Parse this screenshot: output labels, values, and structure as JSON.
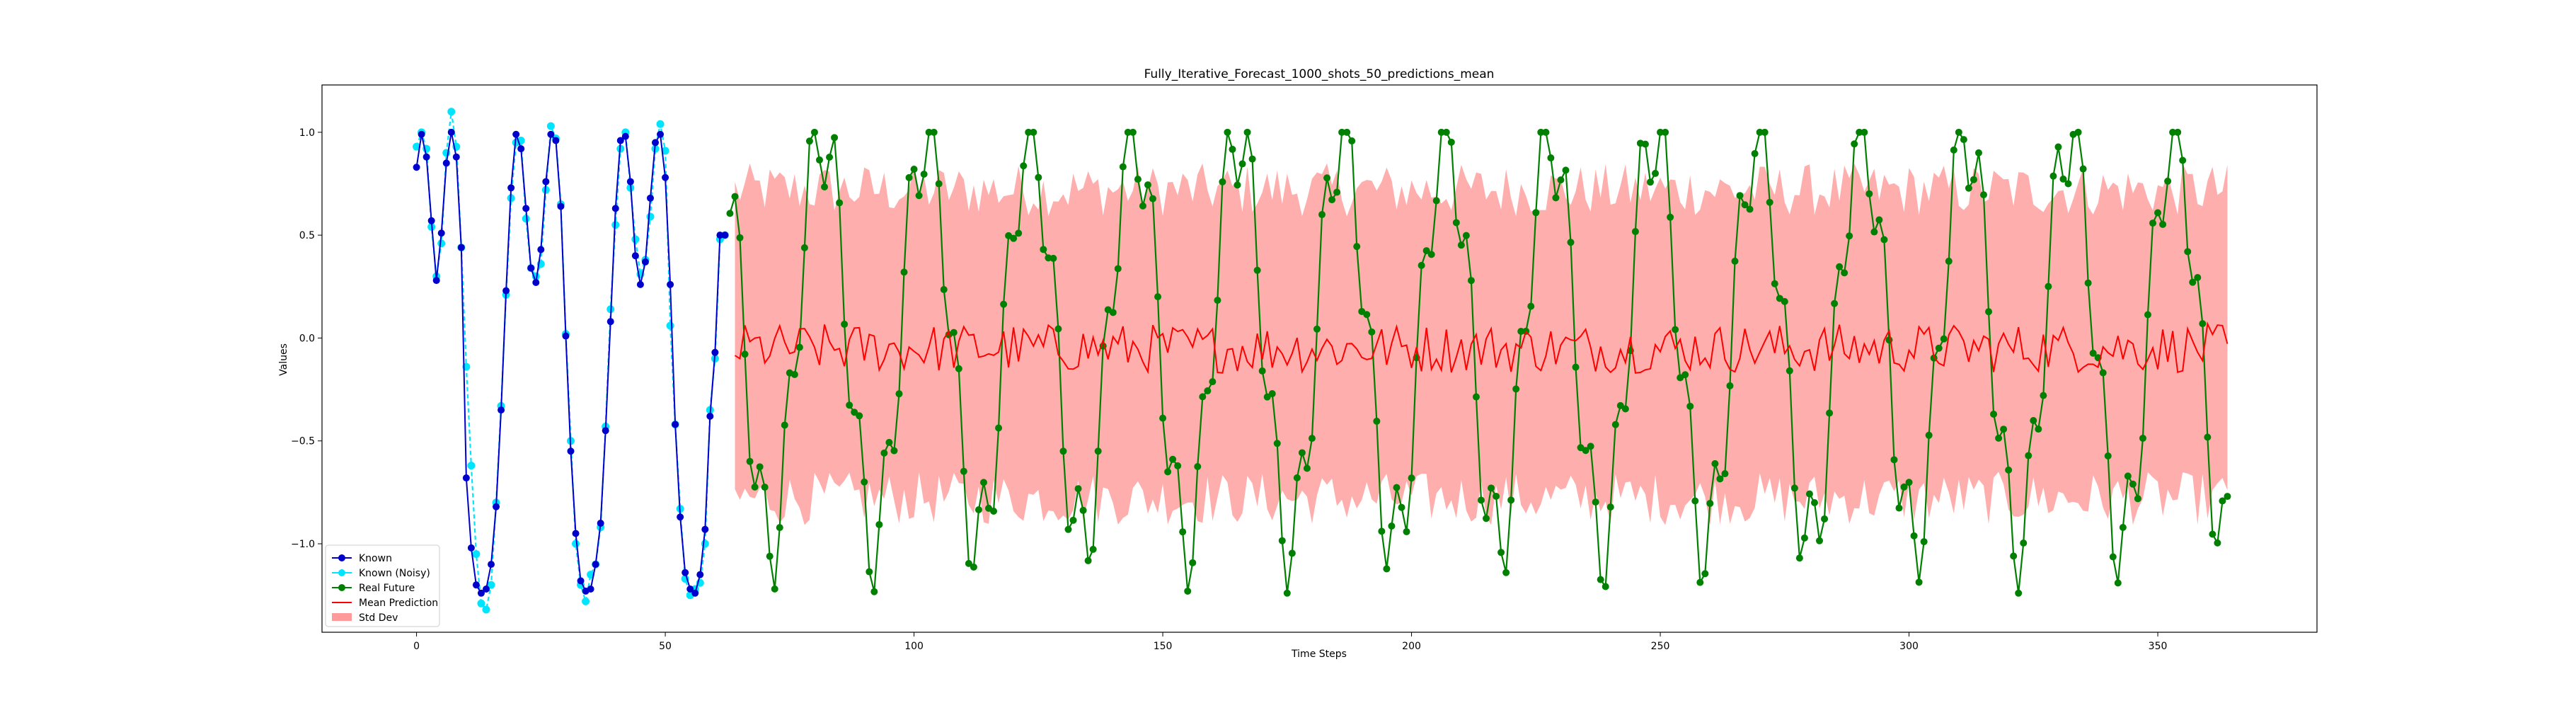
{
  "chart_data": {
    "type": "line",
    "title": "Fully_Iterative_Forecast_1000_shots_50_predictions_mean",
    "xlabel": "Time Steps",
    "ylabel": "Values",
    "xlim": [
      -19,
      382
    ],
    "ylim": [
      -1.43,
      1.23
    ],
    "x_ticks": [
      0,
      50,
      100,
      150,
      200,
      250,
      300,
      350
    ],
    "y_ticks": [
      -1.0,
      -0.5,
      0.0,
      0.5,
      1.0
    ],
    "x_tick_labels": [
      "0",
      "50",
      "100",
      "150",
      "200",
      "250",
      "300",
      "350"
    ],
    "y_tick_labels": [
      "−1.0",
      "−0.5",
      "0.0",
      "0.5",
      "1.0"
    ],
    "grid": false,
    "legend_position": "lower-left",
    "signal": {
      "description_of_values": "sum of sines",
      "freq1_period_steps": 20.9,
      "freq2_period_steps": 4.9,
      "amp1": 1.0,
      "amp2": 0.26
    },
    "series": [
      {
        "name": "Known",
        "color": "#0000cd",
        "x_range": [
          0,
          63
        ],
        "y": [
          0.83,
          0.99,
          0.88,
          0.57,
          0.28,
          0.51,
          0.85,
          1.0,
          0.88,
          0.44,
          -0.68,
          -1.02,
          -1.2,
          -1.24,
          -1.22,
          -1.1,
          -0.82,
          -0.35,
          0.23,
          0.73,
          0.99,
          0.92,
          0.63,
          0.34,
          0.27,
          0.43,
          0.76,
          0.99,
          0.96,
          0.64,
          0.01,
          -0.55,
          -0.95,
          -1.18,
          -1.23,
          -1.22,
          -1.1,
          -0.9,
          -0.45,
          0.08,
          0.63,
          0.96,
          0.98,
          0.76,
          0.4,
          0.26,
          0.37,
          0.68,
          0.95,
          0.99,
          0.78,
          0.26,
          -0.42,
          -0.87,
          -1.14,
          -1.22,
          -1.24,
          -1.15,
          -0.93,
          -0.38,
          -0.07,
          0.5,
          0.5
        ]
      },
      {
        "name": "Known (Noisy)",
        "color": "#00e5ff",
        "x_range": [
          0,
          63
        ],
        "y": [
          0.93,
          1.0,
          0.92,
          0.54,
          0.3,
          0.46,
          0.9,
          1.1,
          0.93,
          0.44,
          -0.14,
          -0.62,
          -1.05,
          -1.29,
          -1.32,
          -1.2,
          -0.8,
          -0.33,
          0.21,
          0.68,
          0.95,
          0.96,
          0.58,
          0.34,
          0.3,
          0.36,
          0.72,
          1.03,
          0.97,
          0.65,
          0.02,
          -0.5,
          -1.0,
          -1.2,
          -1.28,
          -1.15,
          -1.1,
          -0.92,
          -0.43,
          0.14,
          0.55,
          0.92,
          1.0,
          0.73,
          0.48,
          0.31,
          0.38,
          0.59,
          0.92,
          1.04,
          0.91,
          0.06,
          -0.42,
          -0.83,
          -1.17,
          -1.25,
          -1.22,
          -1.19,
          -1.0,
          -0.35,
          -0.1,
          0.48,
          0.5
        ]
      },
      {
        "name": "Real Future",
        "color": "#008000",
        "x_range": [
          63,
          364
        ],
        "generator": "signal"
      },
      {
        "name": "Mean Prediction",
        "color": "#ff0000",
        "x_range": [
          64,
          364
        ],
        "mean_level": -0.05,
        "noise_amplitude": 0.12
      },
      {
        "name": "Std Dev",
        "color": "#ff9a9a",
        "x_range": [
          64,
          364
        ],
        "upper_level": 0.72,
        "lower_level": -0.78,
        "noise_amplitude": 0.13
      }
    ]
  }
}
